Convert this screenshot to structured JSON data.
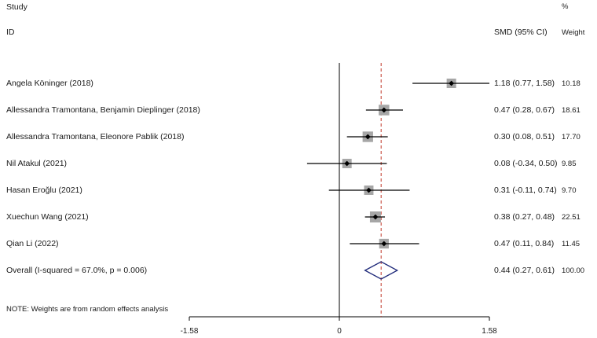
{
  "header": {
    "study_label": "Study",
    "id_label": "ID",
    "smd_label": "SMD (95% CI)",
    "pct_label": "%",
    "weight_label": "Weight"
  },
  "note": "NOTE: Weights are from random effects analysis",
  "chart_data": {
    "type": "forest",
    "x_ticks": [
      -1.58,
      0,
      1.58
    ],
    "x_tick_labels": [
      "-1.58",
      "0",
      "1.58"
    ],
    "xlim": [
      -1.58,
      1.58
    ],
    "null_line": 0,
    "overall_line": 0.44,
    "studies": [
      {
        "name": "Angela Köninger (2018)",
        "smd": 1.18,
        "lo": 0.77,
        "hi": 1.58,
        "ci_text": "1.18 (0.77, 1.58)",
        "weight": 10.18,
        "weight_text": "10.18"
      },
      {
        "name": "Allessandra Tramontana, Benjamin Dieplinger (2018)",
        "smd": 0.47,
        "lo": 0.28,
        "hi": 0.67,
        "ci_text": "0.47 (0.28, 0.67)",
        "weight": 18.61,
        "weight_text": "18.61"
      },
      {
        "name": "Allessandra Tramontana, Eleonore Pablik (2018)",
        "smd": 0.3,
        "lo": 0.08,
        "hi": 0.51,
        "ci_text": "0.30 (0.08, 0.51)",
        "weight": 17.7,
        "weight_text": "17.70"
      },
      {
        "name": "Nil Atakul (2021)",
        "smd": 0.08,
        "lo": -0.34,
        "hi": 0.5,
        "ci_text": "0.08 (-0.34, 0.50)",
        "weight": 9.85,
        "weight_text": "9.85"
      },
      {
        "name": "Hasan Eroğlu (2021)",
        "smd": 0.31,
        "lo": -0.11,
        "hi": 0.74,
        "ci_text": "0.31 (-0.11, 0.74)",
        "weight": 9.7,
        "weight_text": "9.70"
      },
      {
        "name": "Xuechun Wang  (2021)",
        "smd": 0.38,
        "lo": 0.27,
        "hi": 0.48,
        "ci_text": "0.38 (0.27, 0.48)",
        "weight": 22.51,
        "weight_text": "22.51"
      },
      {
        "name": "Qian Li  (2022)",
        "smd": 0.47,
        "lo": 0.11,
        "hi": 0.84,
        "ci_text": "0.47 (0.11, 0.84)",
        "weight": 11.45,
        "weight_text": "11.45"
      }
    ],
    "overall": {
      "name": "Overall  (I-squared = 67.0%, p = 0.006)",
      "smd": 0.44,
      "lo": 0.27,
      "hi": 0.61,
      "ci_text": "0.44 (0.27, 0.61)",
      "weight_text": "100.00"
    },
    "colors": {
      "ci_line": "#000000",
      "weight_box": "#a6a6a6",
      "point": "#000000",
      "overall_line": "#c0392b",
      "diamond": "#1f2a7a",
      "axis": "#000000"
    }
  }
}
